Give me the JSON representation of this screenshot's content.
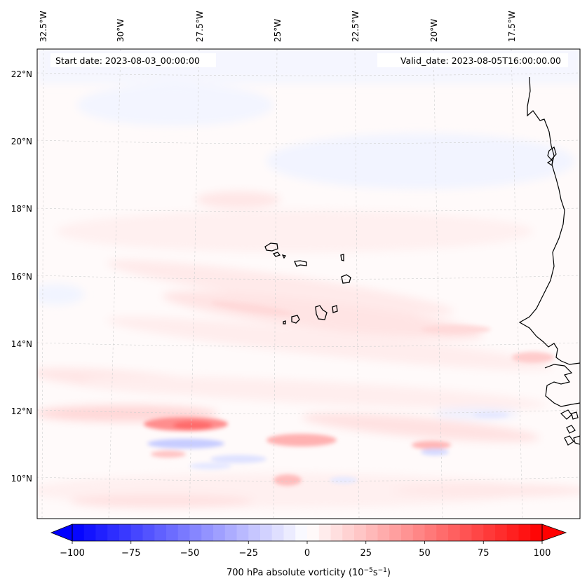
{
  "map": {
    "start_date_label": "Start date: 2023-08-03_00:00:00",
    "valid_date_label": "Valid_date: 2023-08-05T16:00:00.00",
    "lon_labels": [
      "32.5°W",
      "30°W",
      "27.5°W",
      "25°W",
      "22.5°W",
      "20°W",
      "17.5°W"
    ],
    "lat_labels": [
      "22°N",
      "20°N",
      "18°N",
      "16°N",
      "14°N",
      "12°N",
      "10°N"
    ],
    "field_name": "700 hPa absolute vorticity",
    "region": "Cape Verde Islands and West African coast"
  },
  "colorbar": {
    "ticks": [
      "−100",
      "−75",
      "−50",
      "−25",
      "0",
      "25",
      "50",
      "75",
      "100"
    ],
    "label_prefix": "700 hPa absolute vorticity (10",
    "label_exp1": "−5",
    "label_mid": "s",
    "label_exp2": "−1",
    "label_suffix": ")",
    "min": -100,
    "max": 100,
    "colors": {
      "negative": "#0000ff",
      "zero": "#ffffff",
      "positive": "#ff0000"
    }
  }
}
